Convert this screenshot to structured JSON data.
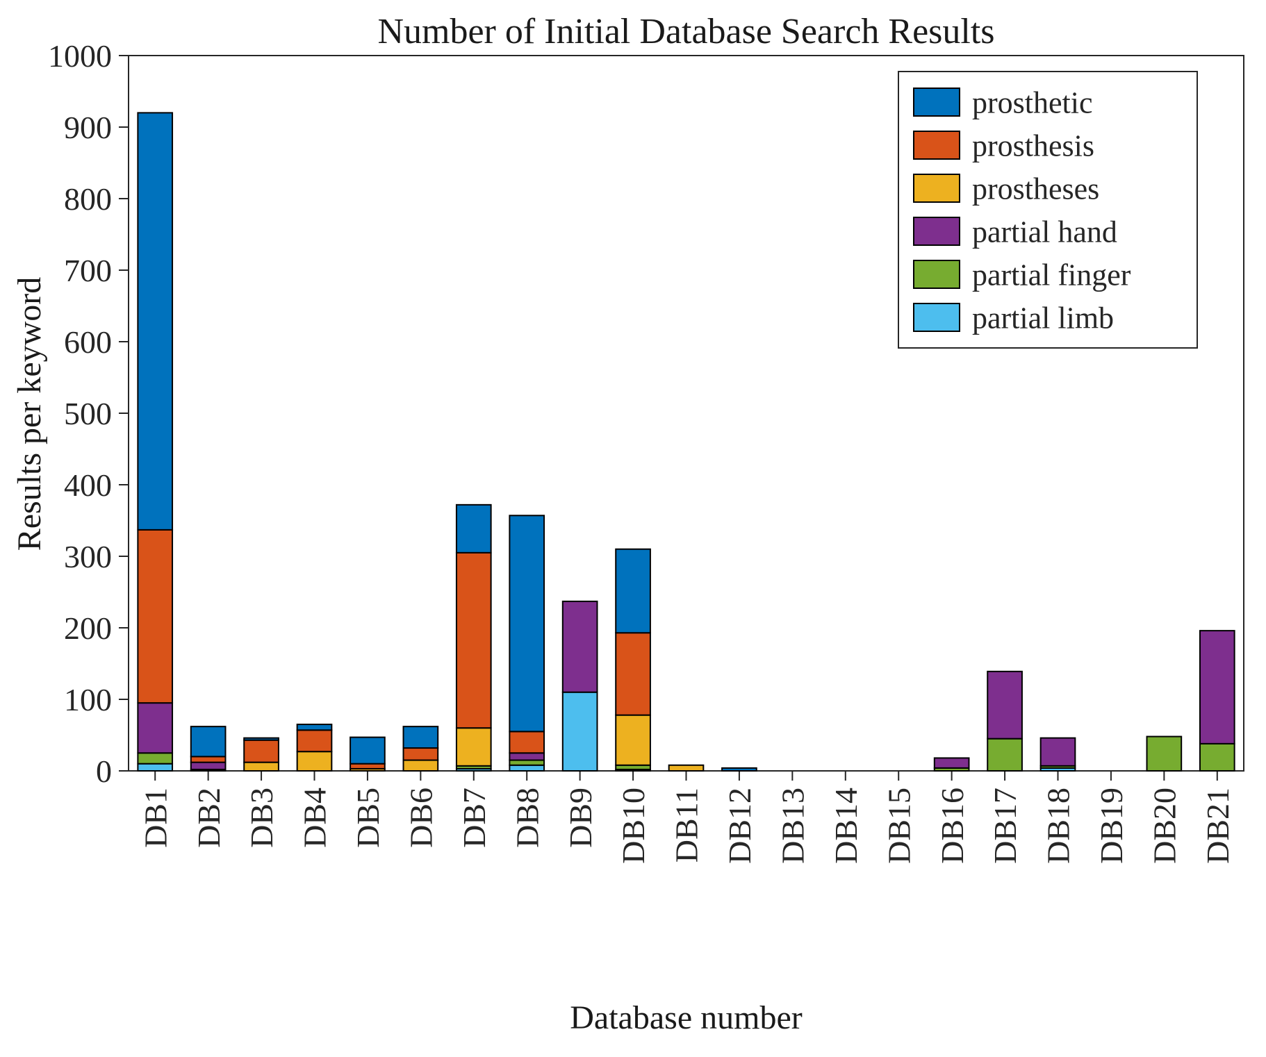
{
  "chart_data": {
    "type": "bar",
    "stacked": true,
    "title": "Number of Initial Database Search Results",
    "xlabel": "Database number",
    "ylabel": "Results per keyword",
    "ylim": [
      0,
      1000
    ],
    "ytick_interval": 100,
    "grid": false,
    "legend_position": "top-right",
    "categories": [
      "DB1",
      "DB2",
      "DB3",
      "DB4",
      "DB5",
      "DB6",
      "DB7",
      "DB8",
      "DB9",
      "DB10",
      "DB11",
      "DB12",
      "DB13",
      "DB14",
      "DB15",
      "DB16",
      "DB17",
      "DB18",
      "DB19",
      "DB20",
      "DB21"
    ],
    "series": [
      {
        "name": "partial limb",
        "color": "#4DBEEE",
        "values": [
          10,
          0,
          0,
          0,
          0,
          0,
          3,
          8,
          110,
          2,
          0,
          0,
          0,
          0,
          0,
          0,
          0,
          4,
          0,
          0,
          0
        ]
      },
      {
        "name": "partial finger",
        "color": "#77AC30",
        "values": [
          15,
          2,
          0,
          0,
          0,
          0,
          4,
          7,
          0,
          6,
          0,
          0,
          0,
          0,
          0,
          4,
          45,
          3,
          0,
          48,
          38
        ]
      },
      {
        "name": "partial hand",
        "color": "#7E2F8E",
        "values": [
          70,
          10,
          0,
          0,
          0,
          0,
          0,
          10,
          127,
          0,
          0,
          0,
          0,
          0,
          0,
          14,
          94,
          39,
          0,
          0,
          158
        ]
      },
      {
        "name": "prostheses",
        "color": "#EDB120",
        "values": [
          0,
          0,
          12,
          27,
          3,
          15,
          53,
          0,
          0,
          70,
          8,
          0,
          0,
          0,
          0,
          0,
          0,
          0,
          0,
          0,
          0
        ]
      },
      {
        "name": "prosthesis",
        "color": "#D95319",
        "values": [
          242,
          8,
          31,
          30,
          7,
          17,
          245,
          30,
          0,
          115,
          0,
          0,
          0,
          0,
          0,
          0,
          0,
          0,
          0,
          0,
          0
        ]
      },
      {
        "name": "prosthetic",
        "color": "#0072BD",
        "values": [
          583,
          42,
          3,
          8,
          37,
          30,
          67,
          302,
          0,
          117,
          0,
          4,
          0,
          0,
          0,
          0,
          0,
          0,
          0,
          0,
          0
        ]
      }
    ],
    "legend_order": [
      "prosthetic",
      "prosthesis",
      "prostheses",
      "partial hand",
      "partial finger",
      "partial limb"
    ],
    "axis_color": "#262626",
    "bar_edge_color": "#000000"
  }
}
